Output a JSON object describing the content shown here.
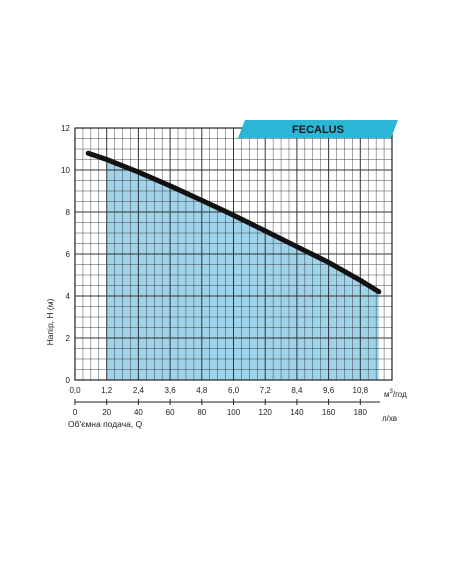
{
  "chart_data": {
    "type": "area",
    "brand": "FECALUS",
    "ylabel": "Напір, Н (м)",
    "xlabel": "Об'ємна подача, Q",
    "x_unit_top_base": "м",
    "x_unit_top_exp": "3",
    "x_unit_top_suffix": "/год",
    "x_unit_bottom": "л/хв",
    "ylim": [
      0,
      12
    ],
    "xlim_m3h": [
      0,
      12
    ],
    "y_ticks": [
      "0",
      "2",
      "4",
      "6",
      "8",
      "10",
      "12"
    ],
    "x_ticks_m3h": [
      "0,0",
      "1,2",
      "2,4",
      "3,6",
      "4,8",
      "6,0",
      "7,2",
      "8,4",
      "9,6",
      "10,8"
    ],
    "x_ticks_lmin": [
      "0",
      "20",
      "40",
      "60",
      "80",
      "100",
      "120",
      "140",
      "160",
      "180"
    ],
    "series": [
      {
        "x": [
          0.5,
          1.2,
          2.4,
          3.6,
          4.8,
          6.0,
          7.2,
          8.4,
          9.6,
          10.8,
          11.5
        ],
        "y": [
          10.8,
          10.5,
          9.9,
          9.25,
          8.55,
          7.85,
          7.1,
          6.35,
          5.6,
          4.75,
          4.2
        ]
      }
    ],
    "fill_range_m3h": [
      1.2,
      11.5
    ],
    "grid": true,
    "colors": {
      "fill": "#9fd3ea",
      "curve": "#111111",
      "grid": "#333333",
      "brand_banner": "#2bb6d6"
    }
  }
}
